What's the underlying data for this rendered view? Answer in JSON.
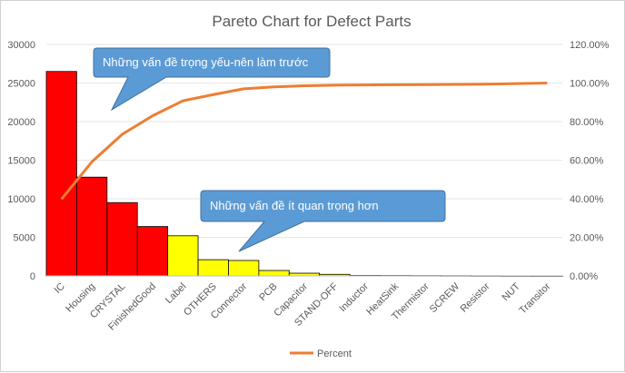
{
  "chart_data": {
    "type": "bar",
    "title": "Pareto Chart for Defect Parts",
    "categories": [
      "IC",
      "Housing",
      "CRYSTAL",
      "FinishedGood",
      "Label",
      "OTHERS",
      "Connector",
      "PCB",
      "Capacitor",
      "STAND-OFF",
      "Inductor",
      "HeatSink",
      "Thermistor",
      "SCREW",
      "Resistor",
      "NUT",
      "Transitor"
    ],
    "series": [
      {
        "values": [
          26500,
          12800,
          9500,
          6400,
          5200,
          2100,
          2000,
          700,
          350,
          200,
          60,
          50,
          40,
          30,
          20,
          10,
          5
        ],
        "colors": [
          "#ff0000",
          "#ff0000",
          "#ff0000",
          "#ff0000",
          "#ffff00",
          "#ffff00",
          "#ffff00",
          "#ffff00",
          "#ffff00",
          "#ffff00",
          "#ffff00",
          "#ffff00",
          "#ffff00",
          "#ffff00",
          "#ffff00",
          "#ffff00",
          "#ffff00"
        ]
      },
      {
        "name": "Percent",
        "axis": "secondary",
        "color": "#ed7d31",
        "values": [
          39.8,
          59.1,
          73.4,
          83.0,
          90.8,
          94.0,
          97.0,
          98.0,
          98.6,
          98.9,
          99.0,
          99.1,
          99.2,
          99.3,
          99.4,
          99.7,
          100.0
        ]
      }
    ],
    "ylim": [
      0,
      30000
    ],
    "yticks": [
      0,
      5000,
      10000,
      15000,
      20000,
      25000,
      30000
    ],
    "y2lim": [
      0,
      120
    ],
    "y2ticks": [
      "0.00%",
      "20.00%",
      "40.00%",
      "60.00%",
      "80.00%",
      "100.00%",
      "120.00%"
    ],
    "legend": {
      "position": "bottom",
      "label": "Percent"
    },
    "annotations": [
      {
        "text": "Những vấn đề trọng yếu-nên làm trước"
      },
      {
        "text": "Những vấn đề ít quan trọng hơn"
      }
    ]
  }
}
